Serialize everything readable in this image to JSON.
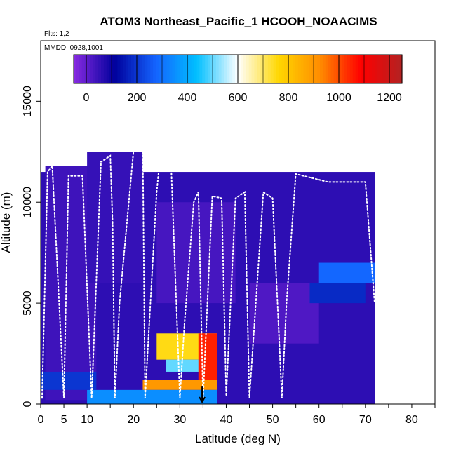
{
  "chart_data": {
    "type": "heatmap",
    "title": "ATOM3 Northeast_Pacific_1 HCOOH_NOAACIMS",
    "flights_label": "Flts: 1,2",
    "dates_label": "MMDD: 0928,1001",
    "xlabel": "Latitude (deg N)",
    "ylabel": "Altitude (m)",
    "xlim": [
      0,
      85
    ],
    "ylim": [
      0,
      18000
    ],
    "x_ticks": [
      0,
      5,
      10,
      20,
      30,
      40,
      50,
      60,
      70,
      80
    ],
    "y_ticks": [
      0,
      5000,
      10000,
      15000
    ],
    "colorbar": {
      "range": [
        -50,
        1250
      ],
      "ticks": [
        0,
        200,
        400,
        600,
        800,
        1000,
        1200
      ],
      "colors": [
        "#8a2be2",
        "#00009c",
        "#1464ff",
        "#00bfff",
        "#ffffff",
        "#ffd700",
        "#ff8c00",
        "#ff0000",
        "#b22222"
      ]
    },
    "background_value": 60,
    "regions": [
      {
        "lat": [
          0,
          72
        ],
        "alt": [
          0,
          11500
        ],
        "value": 60
      },
      {
        "lat": [
          1,
          12
        ],
        "alt": [
          200,
          11800
        ],
        "value": 40
      },
      {
        "lat": [
          10,
          22
        ],
        "alt": [
          6000,
          12500
        ],
        "value": 50
      },
      {
        "lat": [
          25,
          42
        ],
        "alt": [
          5000,
          10000
        ],
        "value": 30
      },
      {
        "lat": [
          45,
          60
        ],
        "alt": [
          3000,
          6000
        ],
        "value": 20
      },
      {
        "lat": [
          60,
          72
        ],
        "alt": [
          6000,
          7000
        ],
        "value": 280
      },
      {
        "lat": [
          58,
          70
        ],
        "alt": [
          5000,
          6000
        ],
        "value": 180
      },
      {
        "lat": [
          25,
          38
        ],
        "alt": [
          2200,
          3500
        ],
        "value": 750
      },
      {
        "lat": [
          27,
          35
        ],
        "alt": [
          1600,
          2200
        ],
        "value": 500
      },
      {
        "lat": [
          22,
          38
        ],
        "alt": [
          700,
          1200
        ],
        "value": 900
      },
      {
        "lat": [
          10,
          38
        ],
        "alt": [
          0,
          700
        ],
        "value": 350
      },
      {
        "lat": [
          34,
          38
        ],
        "alt": [
          1200,
          3500
        ],
        "value": 1050
      },
      {
        "lat": [
          0,
          12
        ],
        "alt": [
          700,
          1600
        ],
        "value": 200
      }
    ],
    "flight_track": [
      {
        "lat": 0.3,
        "alt": 300
      },
      {
        "lat": 1.5,
        "alt": 11500
      },
      {
        "lat": 2.5,
        "alt": 11800
      },
      {
        "lat": 5,
        "alt": 300
      },
      {
        "lat": 6,
        "alt": 11300
      },
      {
        "lat": 9,
        "alt": 11300
      },
      {
        "lat": 11,
        "alt": 300
      },
      {
        "lat": 13,
        "alt": 12000
      },
      {
        "lat": 15,
        "alt": 12300
      },
      {
        "lat": 15.5,
        "alt": 9000
      },
      {
        "lat": 16,
        "alt": 300
      },
      {
        "lat": 17,
        "alt": 5000
      },
      {
        "lat": 20,
        "alt": 12500
      },
      {
        "lat": 22,
        "alt": 12600
      },
      {
        "lat": 22.5,
        "alt": 300
      },
      {
        "lat": 25,
        "alt": 10500
      },
      {
        "lat": 26,
        "alt": 12800
      },
      {
        "lat": 28,
        "alt": 12600
      },
      {
        "lat": 30,
        "alt": 300
      },
      {
        "lat": 31,
        "alt": 4000
      },
      {
        "lat": 33,
        "alt": 10000
      },
      {
        "lat": 34,
        "alt": 10500
      },
      {
        "lat": 35,
        "alt": 300
      },
      {
        "lat": 37,
        "alt": 10300
      },
      {
        "lat": 39,
        "alt": 10200
      },
      {
        "lat": 40,
        "alt": 400
      },
      {
        "lat": 42,
        "alt": 10200
      },
      {
        "lat": 44,
        "alt": 10500
      },
      {
        "lat": 45,
        "alt": 300
      },
      {
        "lat": 48,
        "alt": 10500
      },
      {
        "lat": 50,
        "alt": 10200
      },
      {
        "lat": 52,
        "alt": 300
      },
      {
        "lat": 53,
        "alt": 5000
      },
      {
        "lat": 55,
        "alt": 11400
      },
      {
        "lat": 62,
        "alt": 11000
      },
      {
        "lat": 70,
        "alt": 11000
      },
      {
        "lat": 72,
        "alt": 5000
      }
    ],
    "arrow_lat": 34.8,
    "arrow_alt": [
      0,
      900
    ]
  }
}
